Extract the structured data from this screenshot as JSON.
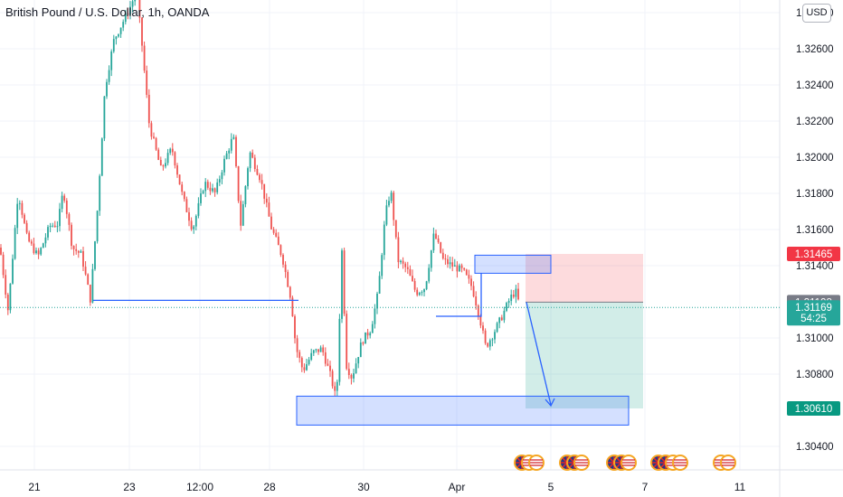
{
  "title": "British Pound / U.S. Dollar, 1h, OANDA",
  "currency_button": "USD",
  "chart_data": {
    "type": "candlestick",
    "y_ticks": [
      "1.32800",
      "1.32600",
      "1.32400",
      "1.32200",
      "1.32000",
      "1.31800",
      "1.31600",
      "1.31400",
      "1.31000",
      "1.30800",
      "1.30400"
    ],
    "x_ticks": [
      "21",
      "23",
      "12:00",
      "28",
      "30",
      "Apr",
      "5",
      "7",
      "11"
    ],
    "ylim": [
      1.302,
      1.329
    ],
    "price_labels": [
      {
        "text": "1.31465",
        "value": 1.31465,
        "color": "#f23645"
      },
      {
        "text": "1.31198",
        "value": 1.31198,
        "color": "#787b86"
      },
      {
        "text": "1.31169",
        "value": 1.31169,
        "color": "#26a69a",
        "sub": "54:25"
      },
      {
        "text": "1.30610",
        "value": 1.3061,
        "color": "#089981"
      }
    ],
    "trade": {
      "entry": 1.31198,
      "stop": 1.31465,
      "target": 1.3061,
      "direction": "short"
    },
    "zones": [
      {
        "name": "supply-zone",
        "top": 1.31458,
        "bottom": 1.31358
      },
      {
        "name": "demand-zone",
        "top": 1.30678,
        "bottom": 1.30518
      }
    ],
    "levels": [
      1.31198,
      1.3112
    ],
    "candle_keys": [
      [
        0,
        1.315
      ],
      [
        9,
        1.3115
      ],
      [
        20,
        1.3181
      ],
      [
        30,
        1.3155
      ],
      [
        42,
        1.3145
      ],
      [
        55,
        1.3162
      ],
      [
        64,
        1.3163
      ],
      [
        70,
        1.3182
      ],
      [
        80,
        1.315
      ],
      [
        90,
        1.3146
      ],
      [
        100,
        1.3121
      ],
      [
        108,
        1.3173
      ],
      [
        116,
        1.3238
      ],
      [
        126,
        1.3265
      ],
      [
        136,
        1.3275
      ],
      [
        143,
        1.3282
      ],
      [
        151,
        1.3292
      ],
      [
        157,
        1.3262
      ],
      [
        165,
        1.3218
      ],
      [
        178,
        1.3193
      ],
      [
        190,
        1.3205
      ],
      [
        202,
        1.3178
      ],
      [
        213,
        1.316
      ],
      [
        226,
        1.3186
      ],
      [
        238,
        1.318
      ],
      [
        248,
        1.3198
      ],
      [
        258,
        1.3212
      ],
      [
        266,
        1.3162
      ],
      [
        276,
        1.3203
      ],
      [
        288,
        1.3188
      ],
      [
        300,
        1.3161
      ],
      [
        312,
        1.3145
      ],
      [
        322,
        1.3121
      ],
      [
        327,
        1.3095
      ],
      [
        335,
        1.3082
      ],
      [
        346,
        1.3092
      ],
      [
        356,
        1.3094
      ],
      [
        366,
        1.3078
      ],
      [
        372,
        1.3065
      ],
      [
        378,
        1.3148
      ],
      [
        383,
        1.3085
      ],
      [
        389,
        1.3078
      ],
      [
        400,
        1.3098
      ],
      [
        410,
        1.3105
      ],
      [
        418,
        1.3125
      ],
      [
        426,
        1.3168
      ],
      [
        432,
        1.3182
      ],
      [
        440,
        1.3143
      ],
      [
        450,
        1.3138
      ],
      [
        460,
        1.3125
      ],
      [
        470,
        1.3128
      ],
      [
        480,
        1.3158
      ],
      [
        490,
        1.3143
      ],
      [
        500,
        1.314
      ],
      [
        512,
        1.3137
      ],
      [
        522,
        1.3128
      ],
      [
        530,
        1.3112
      ],
      [
        537,
        1.3095
      ],
      [
        545,
        1.3102
      ],
      [
        555,
        1.3112
      ],
      [
        564,
        1.3122
      ],
      [
        570,
        1.3126
      ],
      [
        575,
        1.3117
      ]
    ]
  },
  "econ_events": [
    {
      "flags": [
        "uk",
        "us",
        "us"
      ]
    },
    {
      "flags": [
        "uk",
        "uk",
        "us"
      ]
    },
    {
      "flags": [
        "uk",
        "uk",
        "us"
      ]
    },
    {
      "flags": [
        "uk",
        "uk",
        "us",
        "us"
      ]
    },
    {
      "flags": [
        "us",
        "us"
      ]
    }
  ],
  "colors": {
    "up": "#26a69a",
    "down": "#ef5350",
    "drawing": "#2962ff",
    "grid": "#f0f3fa",
    "axis_text": "#131722"
  }
}
